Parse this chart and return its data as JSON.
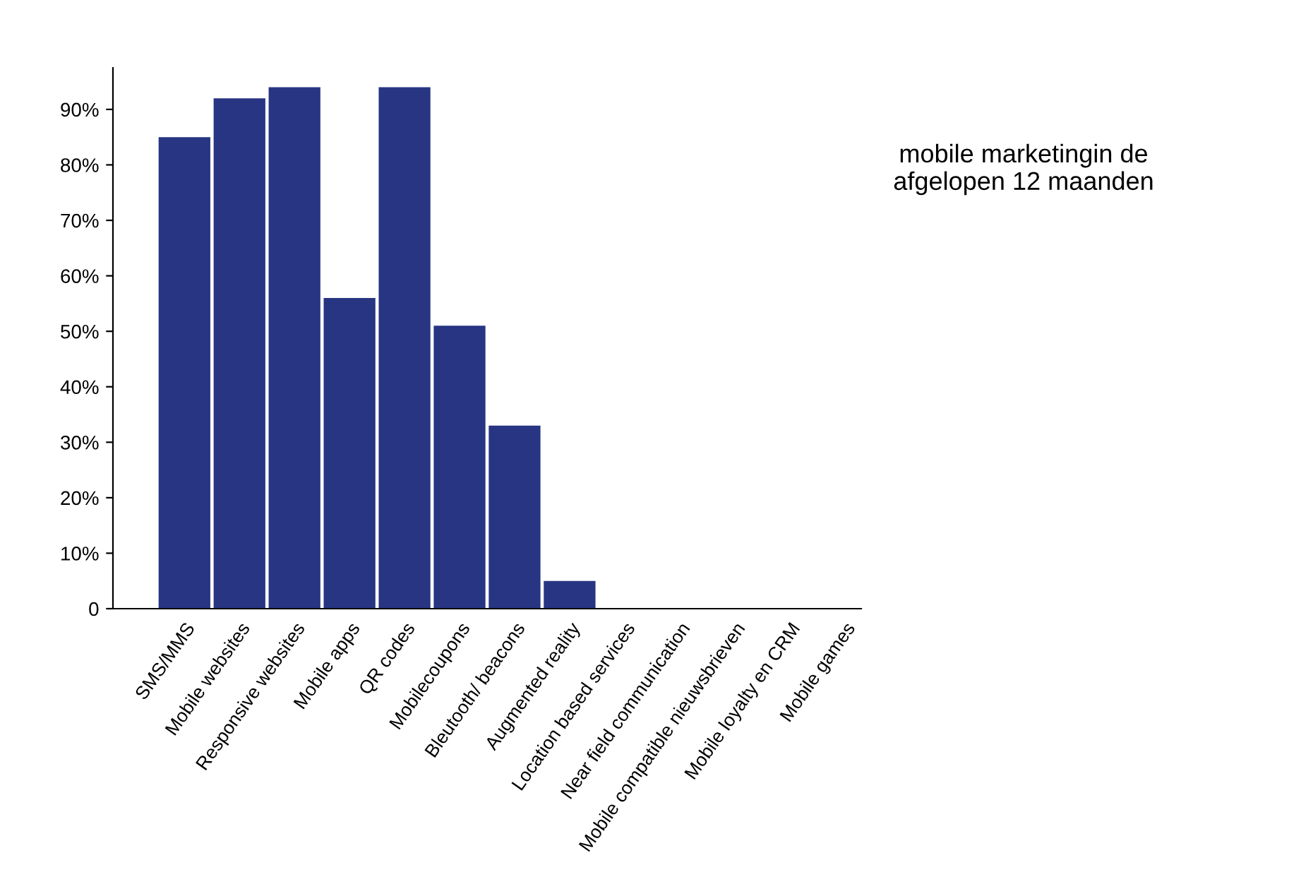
{
  "chart_data": {
    "type": "bar",
    "title": "mobile marketingin de\nafgelopen 12 maanden",
    "categories": [
      "SMS/MMS",
      "Mobile websites",
      "Responsive websites",
      "Mobile apps",
      "QR codes",
      "Mobilecoupons",
      "Bleutooth/ beacons",
      "Augmented reality",
      "Location based services",
      "Near field communication",
      "Mobile compatible nieuwsbrieven",
      "Mobile loyalty en CRM",
      "Mobile games"
    ],
    "values": [
      85,
      92,
      94,
      56,
      94,
      51,
      33,
      5,
      0,
      0,
      0,
      0,
      0
    ],
    "color": "#283583",
    "ylim": [
      0,
      97.5
    ],
    "yticks": [
      {
        "value": 0,
        "label": "0"
      },
      {
        "value": 10,
        "label": "10%"
      },
      {
        "value": 20,
        "label": "20%"
      },
      {
        "value": 30,
        "label": "30%"
      },
      {
        "value": 40,
        "label": "40%"
      },
      {
        "value": 50,
        "label": "50%"
      },
      {
        "value": 60,
        "label": "60%"
      },
      {
        "value": 70,
        "label": "70%"
      },
      {
        "value": 80,
        "label": "80%"
      },
      {
        "value": 90,
        "label": "90%"
      }
    ],
    "grid": false,
    "legend": false
  }
}
